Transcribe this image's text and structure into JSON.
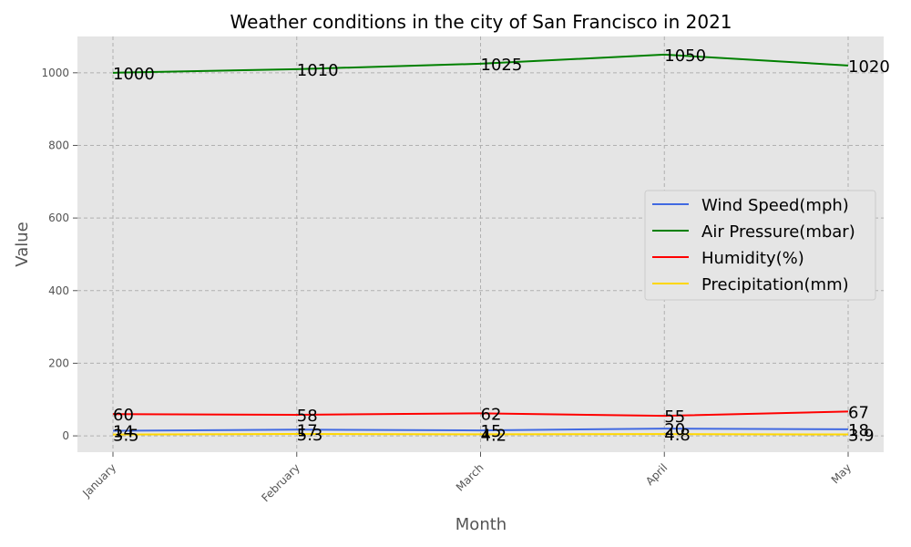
{
  "chart_data": {
    "type": "line",
    "title": "Weather conditions in the city of San Francisco in 2021",
    "xlabel": "Month",
    "ylabel": "Value",
    "categories": [
      "January",
      "February",
      "March",
      "April",
      "May"
    ],
    "ylim": [
      -45,
      1100
    ],
    "yticks": [
      0,
      200,
      400,
      600,
      800,
      1000
    ],
    "grid": true,
    "legend_position": "center-right",
    "series": [
      {
        "name": "Wind Speed(mph)",
        "color": "#4169e1",
        "values": [
          14,
          17,
          15,
          20,
          18
        ]
      },
      {
        "name": "Air Pressure(mbar)",
        "color": "#008000",
        "values": [
          1000,
          1010,
          1025,
          1050,
          1020
        ]
      },
      {
        "name": "Humidity(%)",
        "color": "#ff0000",
        "values": [
          60,
          58,
          62,
          55,
          67
        ]
      },
      {
        "name": "Precipitation(mm)",
        "color": "#ffd700",
        "values": [
          3.5,
          5.3,
          4.2,
          4.8,
          3.9
        ]
      }
    ]
  }
}
